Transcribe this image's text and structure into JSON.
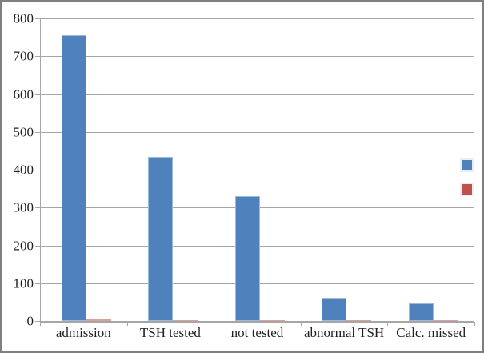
{
  "chart_data": {
    "type": "bar",
    "title": "",
    "categories": [
      "admission",
      "TSH tested",
      "not tested",
      "abnormal TSH",
      "Calc. missed"
    ],
    "series": [
      {
        "name": "",
        "color": "#4f81bd",
        "values": [
          755,
          433,
          330,
          61,
          47
        ]
      },
      {
        "name": "",
        "color": "#c0504d",
        "values": [
          4,
          3,
          3,
          3,
          3
        ]
      }
    ],
    "ylim": [
      0,
      800
    ],
    "y_tick_step": 100,
    "y_tick_labels": [
      "0",
      "100",
      "200",
      "300",
      "400",
      "500",
      "600",
      "700",
      "800"
    ],
    "xlabel": "",
    "ylabel": "",
    "grid": true,
    "legend_position": "right",
    "legend_text_visible": false
  },
  "colors": {
    "series1": "#4f81bd",
    "series2": "#c0504d",
    "gridline": "#a6a6a6",
    "axis": "#a6a6a6",
    "text": "#1f1f1f",
    "frame_border": "#7f7f7f",
    "background": "#ffffff"
  }
}
